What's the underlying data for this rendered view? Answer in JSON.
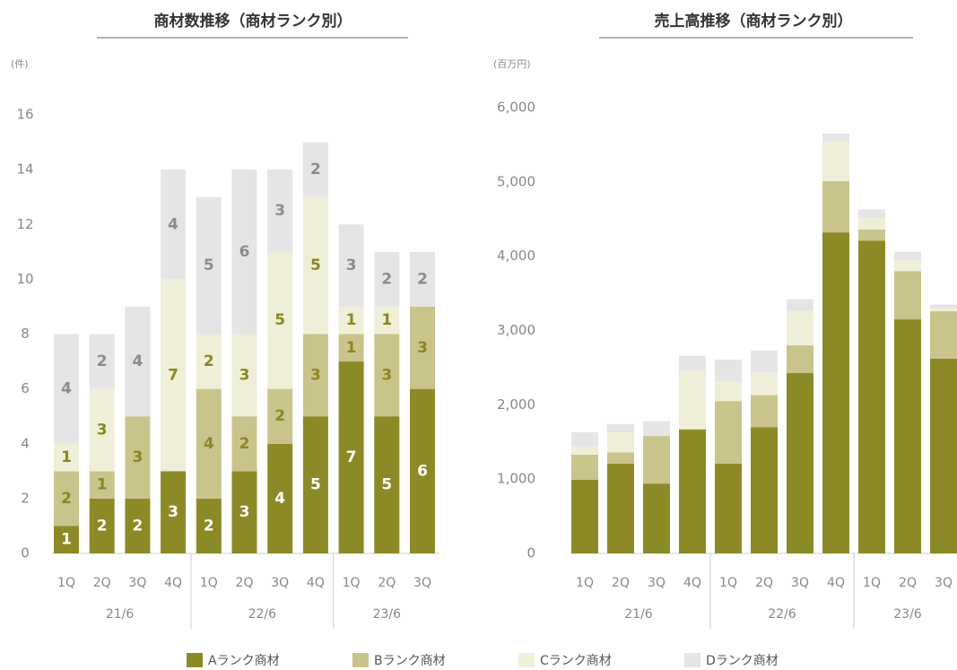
{
  "chart_data": [
    {
      "type": "stacked_bar",
      "title": "商材数推移（商材ランク別）",
      "unit": "(件)",
      "groups": [
        {
          "label": "21/6",
          "categories": [
            "1Q",
            "2Q",
            "3Q",
            "4Q"
          ]
        },
        {
          "label": "22/6",
          "categories": [
            "1Q",
            "2Q",
            "3Q",
            "4Q"
          ]
        },
        {
          "label": "23/6",
          "categories": [
            "1Q",
            "2Q",
            "3Q"
          ]
        }
      ],
      "series": [
        {
          "name": "Aランク商材",
          "color": "#8c8a26",
          "label_color": "#ffffff",
          "values": [
            1,
            2,
            2,
            3,
            2,
            3,
            4,
            5,
            7,
            5,
            6
          ]
        },
        {
          "name": "Bランク商材",
          "color": "#c9c48c",
          "label_color": "#8a8720",
          "values": [
            2,
            1,
            3,
            0,
            4,
            2,
            2,
            3,
            1,
            3,
            3
          ]
        },
        {
          "name": "Cランク商材",
          "color": "#efefd9",
          "label_color": "#8a8720",
          "values": [
            1,
            3,
            0,
            7,
            2,
            3,
            5,
            5,
            1,
            1,
            0
          ]
        },
        {
          "name": "Dランク商材",
          "color": "#e5e5e5",
          "label_color": "#8c8c8c",
          "values": [
            4,
            2,
            4,
            4,
            5,
            6,
            3,
            2,
            3,
            2,
            2
          ]
        }
      ],
      "ylim": [
        0,
        16
      ],
      "yticks": [
        0,
        2,
        4,
        6,
        8,
        10,
        12,
        14,
        16
      ],
      "data_labels": true
    },
    {
      "type": "stacked_bar",
      "title": "売上高推移（商材ランク別）",
      "unit": "(百万円)",
      "groups": [
        {
          "label": "21/6",
          "categories": [
            "1Q",
            "2Q",
            "3Q",
            "4Q"
          ]
        },
        {
          "label": "22/6",
          "categories": [
            "1Q",
            "2Q",
            "3Q",
            "4Q"
          ]
        },
        {
          "label": "23/6",
          "categories": [
            "1Q",
            "2Q",
            "3Q"
          ]
        }
      ],
      "series": [
        {
          "color": "#8c8a26",
          "values": [
            990,
            1210,
            940,
            1670,
            1210,
            1700,
            2430,
            4320,
            4210,
            3150,
            2620
          ]
        },
        {
          "color": "#c9c48c",
          "values": [
            340,
            150,
            640,
            0,
            840,
            430,
            370,
            690,
            150,
            650,
            640
          ]
        },
        {
          "color": "#efefd9",
          "values": [
            110,
            270,
            0,
            790,
            260,
            300,
            470,
            530,
            160,
            150,
            40
          ]
        },
        {
          "color": "#e5e5e5",
          "values": [
            190,
            110,
            200,
            200,
            300,
            300,
            150,
            110,
            110,
            110,
            50
          ]
        }
      ],
      "ylim": [
        0,
        6000
      ],
      "yticks": [
        0,
        {
          "value": 1000,
          "label": "1,000"
        },
        {
          "value": 2000,
          "label": "2,000"
        },
        {
          "value": 3000,
          "label": "3,000"
        },
        {
          "value": 4000,
          "label": "4,000"
        },
        {
          "value": 5000,
          "label": "5,000"
        },
        {
          "value": 6000,
          "label": "6,000"
        }
      ],
      "data_labels": false
    }
  ]
}
